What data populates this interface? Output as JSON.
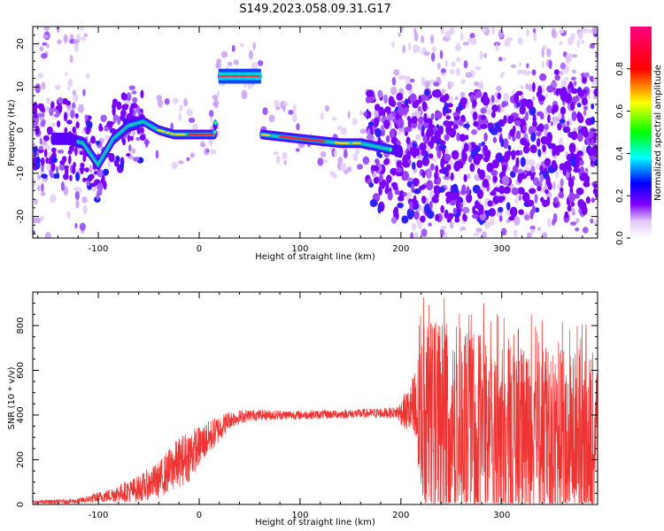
{
  "figure": {
    "title": "S149.2023.058.09.31.G17"
  },
  "chart_data": [
    {
      "type": "heatmap",
      "xlabel": "Height of straight line (km)",
      "ylabel": "Frequency (Hz)",
      "xlim": [
        -165,
        395
      ],
      "ylim": [
        -25,
        24
      ],
      "xticks": [
        -100,
        0,
        100,
        200,
        300
      ],
      "yticks": [
        -20,
        -10,
        0,
        10,
        20
      ],
      "ridge": {
        "name": "dominant spectral line",
        "points": [
          {
            "x": -165,
            "y": -2
          },
          {
            "x": -130,
            "y": -2
          },
          {
            "x": -115,
            "y": -3
          },
          {
            "x": -100,
            "y": -8
          },
          {
            "x": -85,
            "y": -2
          },
          {
            "x": -70,
            "y": 1
          },
          {
            "x": -55,
            "y": 2
          },
          {
            "x": -40,
            "y": 0
          },
          {
            "x": -25,
            "y": -1
          },
          {
            "x": -10,
            "y": -1
          },
          {
            "x": 0,
            "y": -1
          },
          {
            "x": 15,
            "y": -1
          },
          {
            "x": 20,
            "y": 12.5
          },
          {
            "x": 60,
            "y": 12.5
          },
          {
            "x": 62,
            "y": -1
          },
          {
            "x": 100,
            "y": -2
          },
          {
            "x": 140,
            "y": -3
          },
          {
            "x": 160,
            "y": -3
          },
          {
            "x": 180,
            "y": -4
          },
          {
            "x": 200,
            "y": -5
          }
        ]
      },
      "colorbar": {
        "label": "Normalized spectral amplitude",
        "range": [
          0,
          1
        ],
        "ticks": [
          "0.0",
          "0.2",
          "0.4",
          "0.6",
          "0.8"
        ],
        "colors": [
          "#ffffff",
          "#e0c8f8",
          "#8000ff",
          "#0000ff",
          "#00ffff",
          "#00ff00",
          "#ffff00",
          "#ff0000",
          "#ff0080"
        ]
      }
    },
    {
      "type": "line",
      "xlabel": "Height of straight line (km)",
      "ylabel": "SNR (10 * v/v)",
      "xlim": [
        -165,
        395
      ],
      "ylim": [
        0,
        950
      ],
      "xticks": [
        -100,
        0,
        100,
        200,
        300
      ],
      "yticks": [
        0,
        200,
        400,
        600,
        800
      ],
      "color": "#ee3333",
      "envelope": [
        {
          "x": -165,
          "mean": 10,
          "spread": 8
        },
        {
          "x": -120,
          "mean": 15,
          "spread": 12
        },
        {
          "x": -90,
          "mean": 40,
          "spread": 30
        },
        {
          "x": -60,
          "mean": 70,
          "spread": 60
        },
        {
          "x": -40,
          "mean": 110,
          "spread": 80
        },
        {
          "x": -25,
          "mean": 170,
          "spread": 110
        },
        {
          "x": -10,
          "mean": 220,
          "spread": 120
        },
        {
          "x": 0,
          "mean": 260,
          "spread": 90
        },
        {
          "x": 15,
          "mean": 320,
          "spread": 70
        },
        {
          "x": 30,
          "mean": 380,
          "spread": 40
        },
        {
          "x": 50,
          "mean": 400,
          "spread": 25
        },
        {
          "x": 100,
          "mean": 400,
          "spread": 20
        },
        {
          "x": 150,
          "mean": 405,
          "spread": 20
        },
        {
          "x": 195,
          "mean": 410,
          "spread": 25
        },
        {
          "x": 210,
          "mean": 420,
          "spread": 120
        },
        {
          "x": 220,
          "mean": 380,
          "spread": 380
        },
        {
          "x": 240,
          "mean": 360,
          "spread": 480
        },
        {
          "x": 300,
          "mean": 300,
          "spread": 400
        },
        {
          "x": 395,
          "mean": 300,
          "spread": 380
        }
      ]
    }
  ]
}
